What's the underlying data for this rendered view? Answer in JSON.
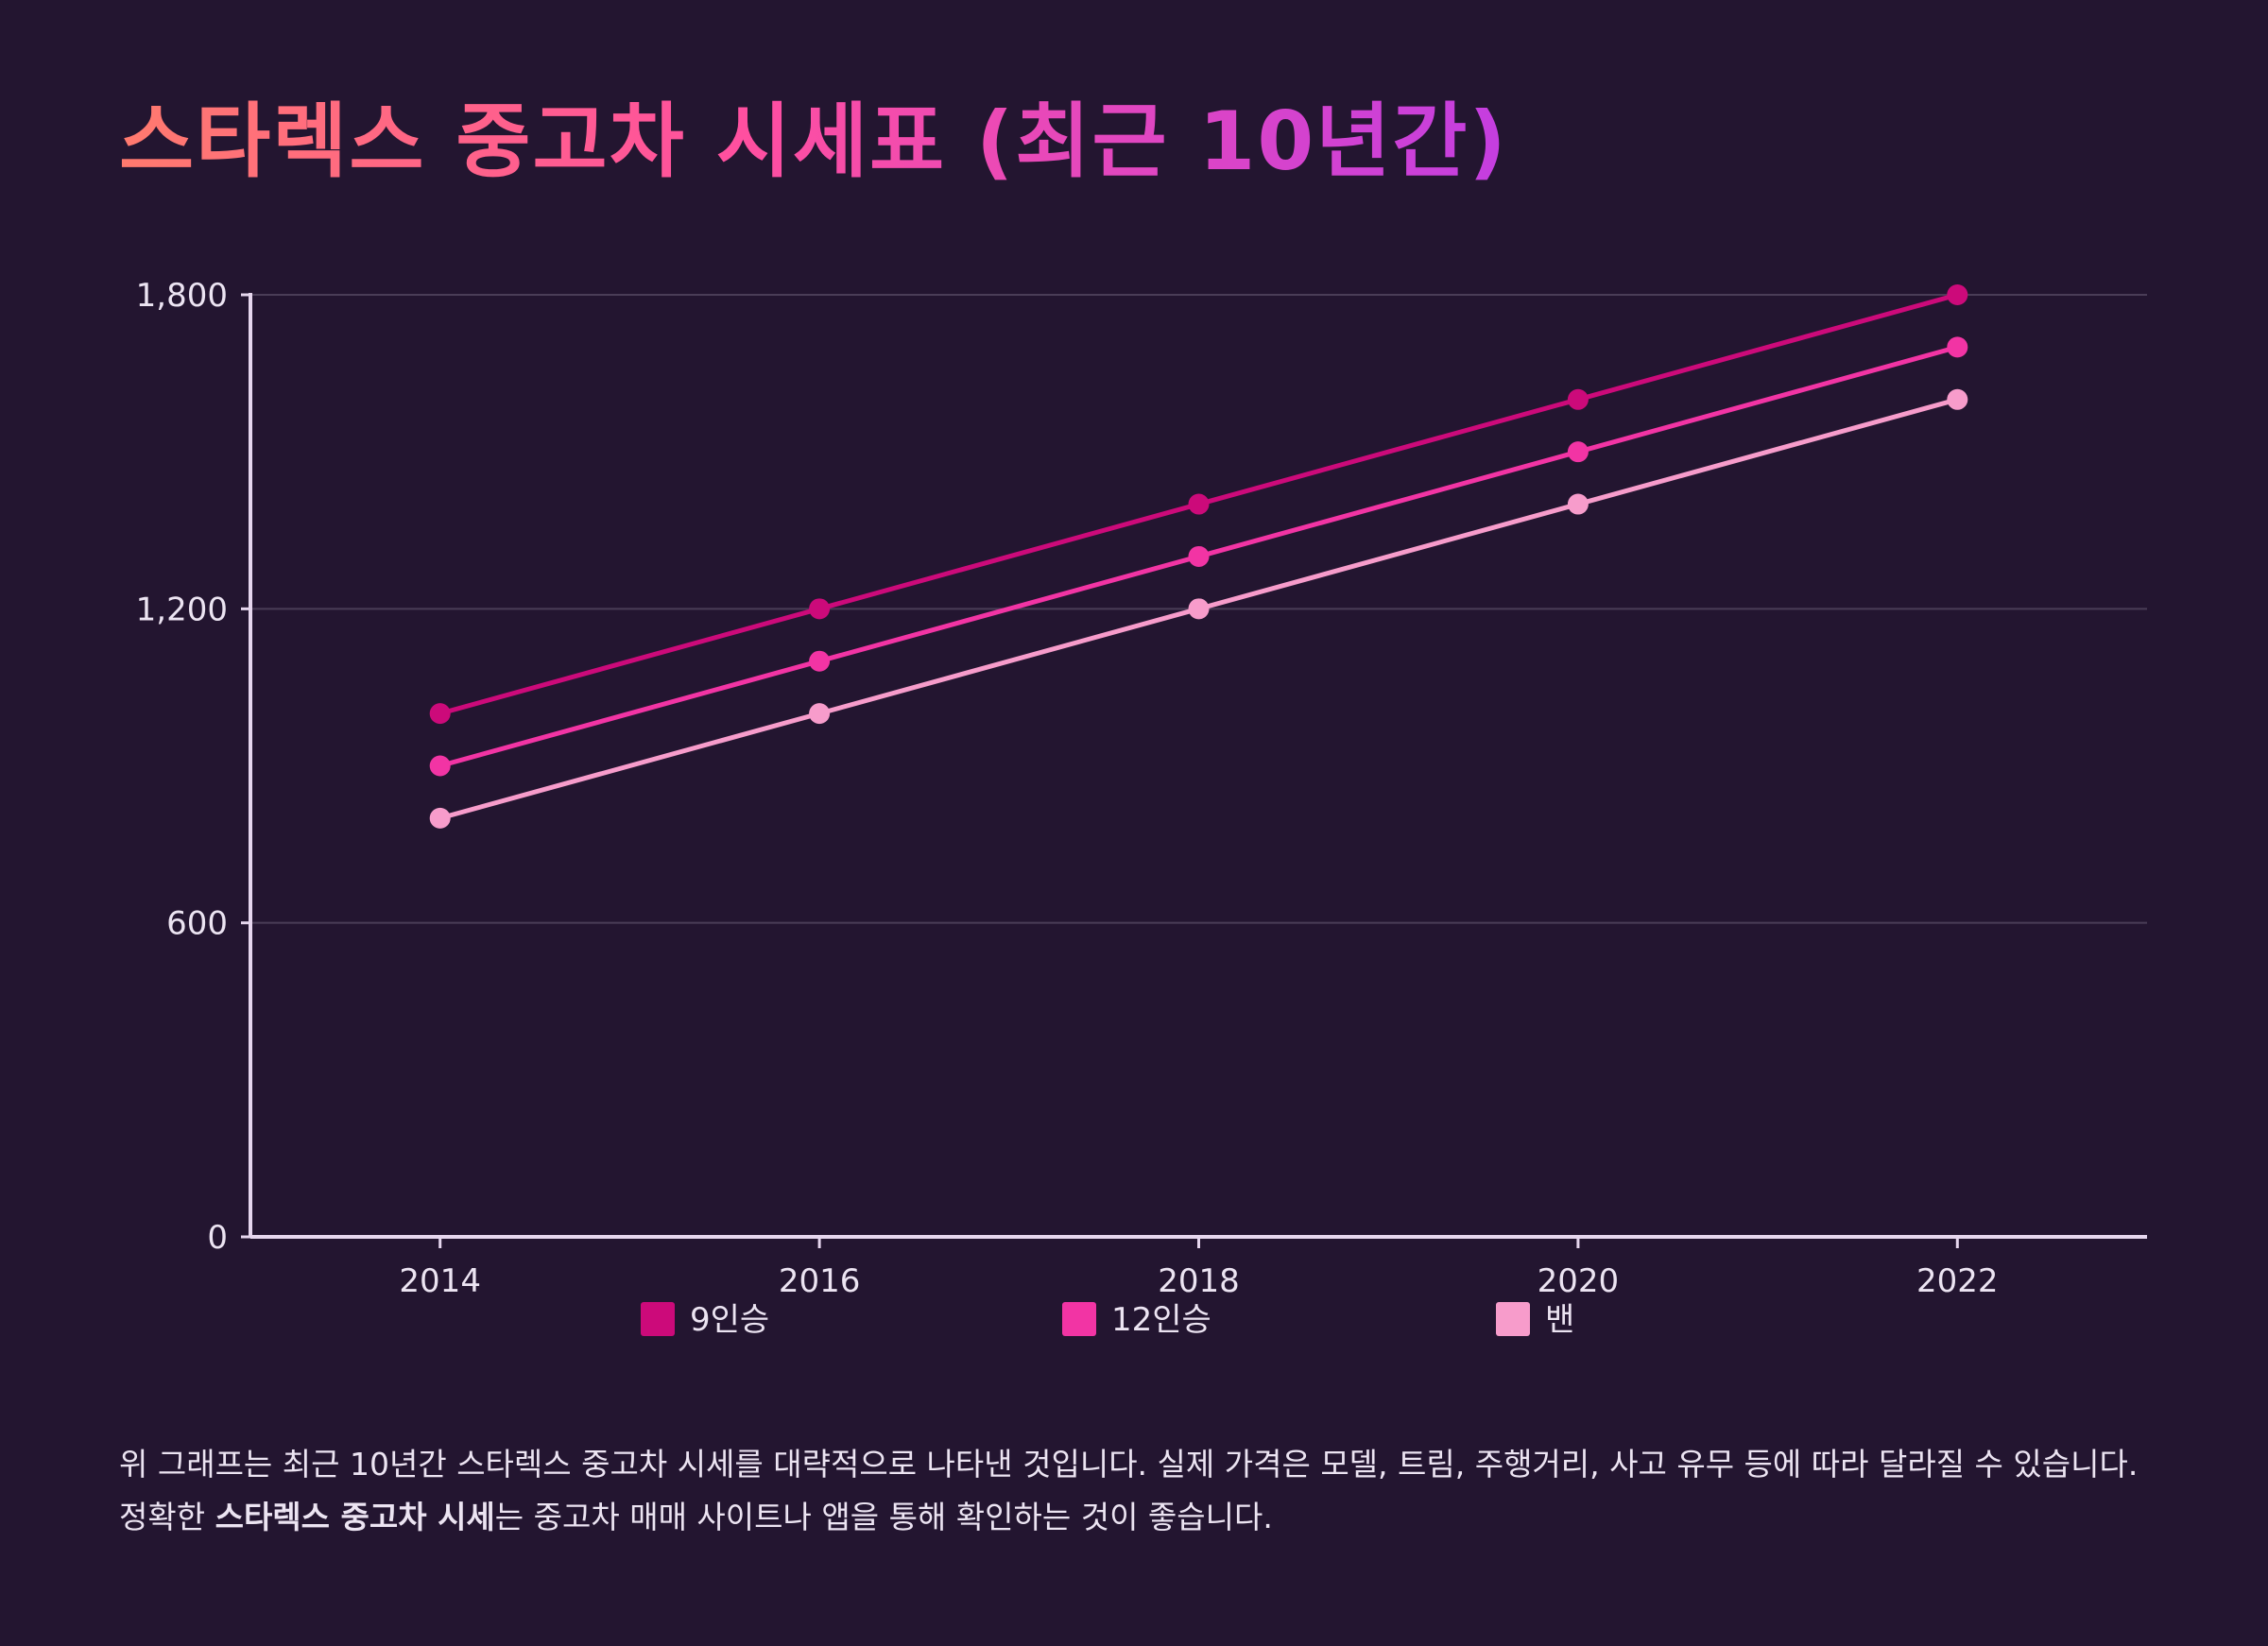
{
  "title": "스타렉스 중고차 시세표 (최근 10년간)",
  "colors": {
    "background": "#231530",
    "axis": "#e6d6ee",
    "grid": "#4a3d57",
    "text": "#ece4f2"
  },
  "description": {
    "part1": "위 그래프는 최근 10년간 스타렉스 중고차 시세를 대략적으로 나타낸 것입니다. 실제 가격은 모델, 트림, 주행거리, 사고 유무 등에 따라 달라질 수 있습니다. 정확한 ",
    "bold": "스타렉스 중고차 시세",
    "part2": "는 중고차 매매 사이트나 앱을 통해 확인하는 것이 좋습니다."
  },
  "chart_data": {
    "type": "line",
    "title": "스타렉스 중고차 시세표 (최근 10년간)",
    "xlabel": "",
    "ylabel": "",
    "x": [
      2014,
      2016,
      2018,
      2020,
      2022
    ],
    "x_ticks": [
      "2014",
      "2016",
      "2018",
      "2020",
      "2022"
    ],
    "xlim": [
      2013,
      2023
    ],
    "ylim": [
      0,
      1800
    ],
    "y_ticks": [
      0,
      600,
      1200,
      1800
    ],
    "y_tick_labels": [
      "0",
      "600",
      "1,200",
      "1,800"
    ],
    "grid": true,
    "legend": "bottom",
    "series": [
      {
        "name": "9인승",
        "color": "#cc0a7a",
        "values": [
          1000,
          1200,
          1400,
          1600,
          1800
        ]
      },
      {
        "name": "12인승",
        "color": "#f234a4",
        "values": [
          900,
          1100,
          1300,
          1500,
          1700
        ]
      },
      {
        "name": "밴",
        "color": "#f79ccb",
        "values": [
          800,
          1000,
          1200,
          1400,
          1600
        ]
      }
    ]
  }
}
